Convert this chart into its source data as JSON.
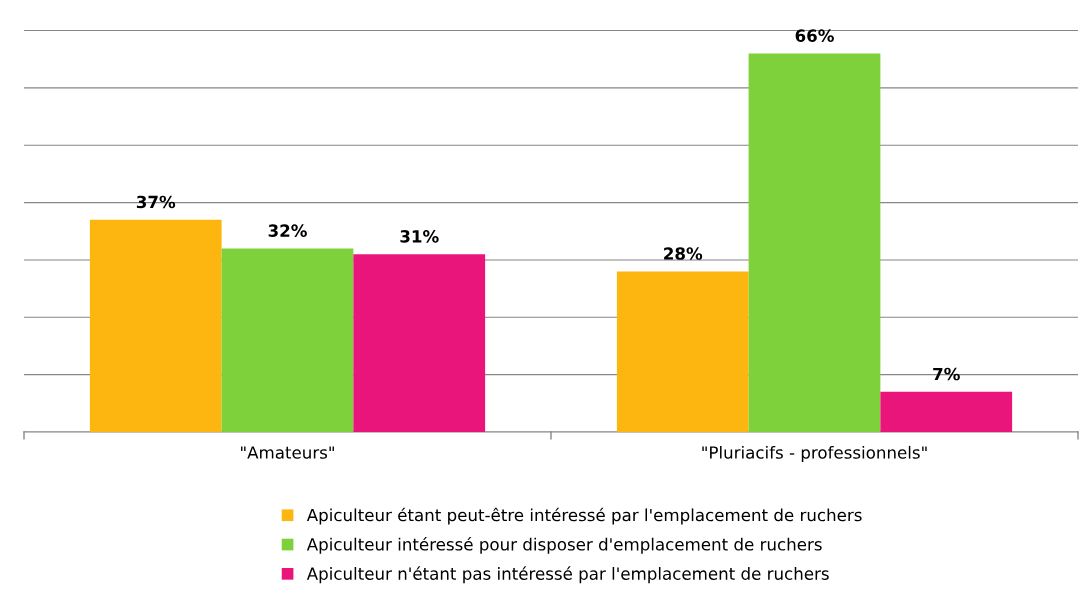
{
  "chart_data": {
    "type": "bar",
    "categories": [
      "\"Amateurs\"",
      "\"Pluriacifs - professionnels\""
    ],
    "series": [
      {
        "name": "Apiculteur étant peut-être intéressé par l'emplacement de ruchers",
        "color": "#fdb50f",
        "values": [
          37,
          28
        ],
        "value_labels": [
          "37%",
          "28%"
        ]
      },
      {
        "name": "Apiculteur intéressé pour disposer d'emplacement de ruchers",
        "color": "#7fd13b",
        "values": [
          32,
          66
        ],
        "value_labels": [
          "32%",
          "66%"
        ]
      },
      {
        "name": "Apiculteur n'étant pas intéressé par l'emplacement de ruchers",
        "color": "#ea157a",
        "values": [
          31,
          7
        ],
        "value_labels": [
          "31%",
          "7%"
        ]
      }
    ],
    "tick_labels": "x",
    "grid": "y",
    "legend": "bottom"
  }
}
